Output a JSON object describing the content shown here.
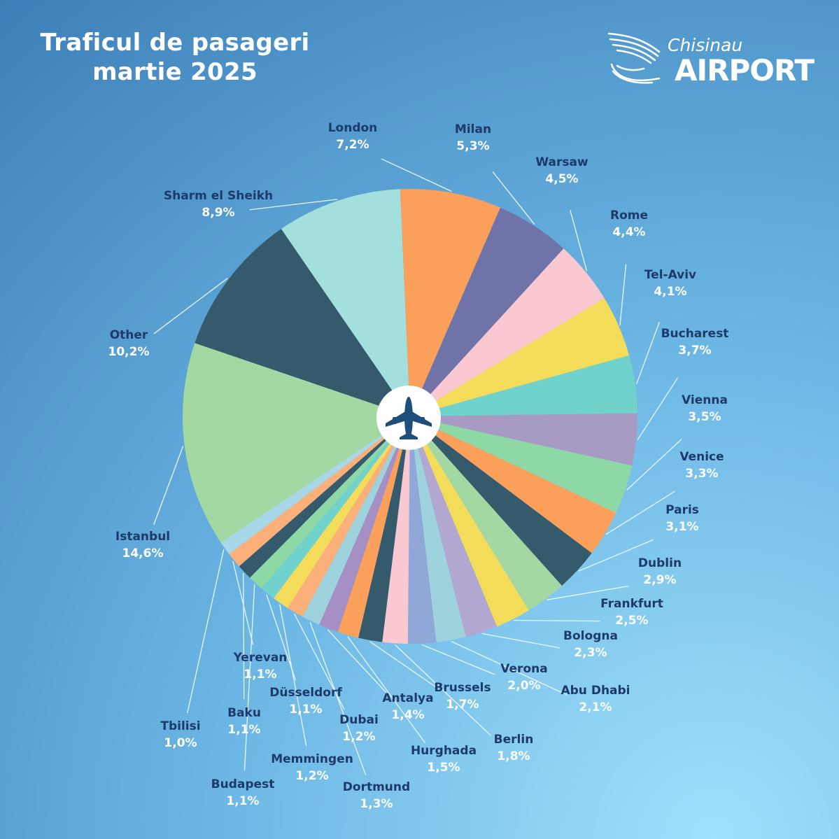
{
  "header": {
    "title_line1": "Traficul de pasageri",
    "title_line2": "martie 2025"
  },
  "logo": {
    "city": "Chisinau",
    "brand": "AIRPORT",
    "emblem_icon": "wing-and-hands-icon"
  },
  "center_icon": "airplane-icon",
  "chart_data": {
    "type": "pie",
    "slices": [
      {
        "label": "London",
        "value": 7.2,
        "display": "7,2%",
        "color": "#fba05a"
      },
      {
        "label": "Milan",
        "value": 5.3,
        "display": "5,3%",
        "color": "#6f73a8"
      },
      {
        "label": "Warsaw",
        "value": 4.5,
        "display": "4,5%",
        "color": "#f9c8d1"
      },
      {
        "label": "Rome",
        "value": 4.4,
        "display": "4,4%",
        "color": "#f4dc5b"
      },
      {
        "label": "Tel-Aviv",
        "value": 4.1,
        "display": "4,1%",
        "color": "#6fd3cc"
      },
      {
        "label": "Bucharest",
        "value": 3.7,
        "display": "3,7%",
        "color": "#a79bc3"
      },
      {
        "label": "Vienna",
        "value": 3.5,
        "display": "3,5%",
        "color": "#8ed8a5"
      },
      {
        "label": "Venice",
        "value": 3.3,
        "display": "3,3%",
        "color": "#fba05a"
      },
      {
        "label": "Paris",
        "value": 3.1,
        "display": "3,1%",
        "color": "#345a6b"
      },
      {
        "label": "Dublin",
        "value": 2.9,
        "display": "2,9%",
        "color": "#a4d8a3"
      },
      {
        "label": "Frankfurt",
        "value": 2.5,
        "display": "2,5%",
        "color": "#f4dc5b"
      },
      {
        "label": "Bologna",
        "value": 2.3,
        "display": "2,3%",
        "color": "#b2a7d1"
      },
      {
        "label": "Abu Dhabi",
        "value": 2.1,
        "display": "2,1%",
        "color": "#9ed2dd"
      },
      {
        "label": "Verona",
        "value": 2.0,
        "display": "2,0%",
        "color": "#8fa8d8"
      },
      {
        "label": "Berlin",
        "value": 1.8,
        "display": "1,8%",
        "color": "#f9c8d1"
      },
      {
        "label": "Brussels",
        "value": 1.7,
        "display": "1,7%",
        "color": "#345a6b"
      },
      {
        "label": "Hurghada",
        "value": 1.5,
        "display": "1,5%",
        "color": "#fba05a"
      },
      {
        "label": "Antalya",
        "value": 1.4,
        "display": "1,4%",
        "color": "#a68fc2"
      },
      {
        "label": "Dortmund",
        "value": 1.3,
        "display": "1,3%",
        "color": "#9ed2dd"
      },
      {
        "label": "Dubai",
        "value": 1.2,
        "display": "1,2%",
        "color": "#fbb07a"
      },
      {
        "label": "Memmingen",
        "value": 1.2,
        "display": "1,2%",
        "color": "#f4dc5b"
      },
      {
        "label": "Düsseldorf",
        "value": 1.1,
        "display": "1,1%",
        "color": "#6fd3cc"
      },
      {
        "label": "Budapest",
        "value": 1.1,
        "display": "1,1%",
        "color": "#8ed8a5"
      },
      {
        "label": "Baku",
        "value": 1.1,
        "display": "1,1%",
        "color": "#345a6b"
      },
      {
        "label": "Yerevan",
        "value": 1.1,
        "display": "1,1%",
        "color": "#fbb07a"
      },
      {
        "label": "Tbilisi",
        "value": 1.0,
        "display": "1,0%",
        "color": "#a8d7e8"
      },
      {
        "label": "Istanbul",
        "value": 14.6,
        "display": "14,6%",
        "color": "#a4d8a3"
      },
      {
        "label": "Other",
        "value": 10.2,
        "display": "10,2%",
        "color": "#345a6b"
      },
      {
        "label": "Sharm el Sheikh",
        "value": 8.9,
        "display": "8,9%",
        "color": "#a3dfdc"
      }
    ]
  }
}
